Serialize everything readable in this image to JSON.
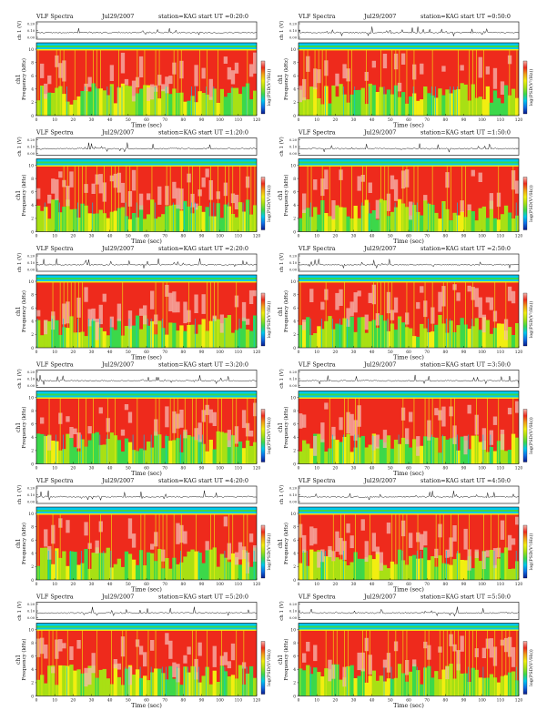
{
  "chart_data": [
    {
      "type": "heatmap",
      "header": "VLF Spectra",
      "date": "Jul29/2007",
      "station": "station=KAG",
      "start": "start UT =0:20:0",
      "xlabel": "Time (sec)",
      "ylabel": "Frequency (kHz)",
      "ylabel_top": "ch 1 (V)",
      "channel": "ch1",
      "cbar_label": "log(PSD(V²/Hz))",
      "xlim": [
        0,
        120
      ],
      "ylim": [
        0,
        10
      ],
      "ylim_top": [
        0.0,
        0.2
      ],
      "xticks": [
        0,
        10,
        20,
        30,
        40,
        50,
        60,
        70,
        80,
        90,
        100,
        110,
        120
      ],
      "yticks": [
        0,
        2,
        4,
        6,
        8,
        10
      ],
      "yticks_top": [
        "0.20",
        "0.10",
        "0.00"
      ]
    },
    {
      "type": "heatmap",
      "header": "VLF Spectra",
      "date": "Jul29/2007",
      "station": "station=KAG",
      "start": "start UT =0:50:0",
      "xlabel": "Time (sec)",
      "ylabel": "Frequency (kHz)",
      "ylabel_top": "ch 1 (V)",
      "channel": "ch1",
      "cbar_label": "log(PSD(V²/Hz))",
      "xlim": [
        0,
        120
      ],
      "ylim": [
        0,
        10
      ],
      "ylim_top": [
        0.0,
        0.2
      ],
      "xticks": [
        0,
        10,
        20,
        30,
        40,
        50,
        60,
        70,
        80,
        90,
        100,
        110,
        120
      ],
      "yticks": [
        0,
        2,
        4,
        6,
        8,
        10
      ],
      "yticks_top": [
        "0.20",
        "0.10",
        "0.00"
      ]
    },
    {
      "type": "heatmap",
      "header": "VLF Spectra",
      "date": "Jul29/2007",
      "station": "station=KAG",
      "start": "start UT =1:20:0",
      "xlabel": "Time (sec)",
      "ylabel": "Frequency (kHz)",
      "ylabel_top": "ch 1 (V)",
      "channel": "ch1",
      "cbar_label": "log(PSD(V²/Hz))",
      "xlim": [
        0,
        120
      ],
      "ylim": [
        0,
        10
      ],
      "ylim_top": [
        0.0,
        0.2
      ],
      "xticks": [
        0,
        10,
        20,
        30,
        40,
        50,
        60,
        70,
        80,
        90,
        100,
        110,
        120
      ],
      "yticks": [
        0,
        2,
        4,
        6,
        8,
        10
      ],
      "yticks_top": [
        "0.20",
        "0.10",
        "0.00"
      ]
    },
    {
      "type": "heatmap",
      "header": "VLF Spectra",
      "date": "Jul29/2007",
      "station": "station=KAG",
      "start": "start UT =1:50:0",
      "xlabel": "Time (sec)",
      "ylabel": "Frequency (kHz)",
      "ylabel_top": "ch 1 (V)",
      "channel": "ch1",
      "cbar_label": "log(PSD(V²/Hz))",
      "xlim": [
        0,
        120
      ],
      "ylim": [
        0,
        10
      ],
      "ylim_top": [
        0.0,
        0.2
      ],
      "xticks": [
        0,
        10,
        20,
        30,
        40,
        50,
        60,
        70,
        80,
        90,
        100,
        110,
        120
      ],
      "yticks": [
        0,
        2,
        4,
        6,
        8,
        10
      ],
      "yticks_top": [
        "0.20",
        "0.10",
        "0.00"
      ]
    },
    {
      "type": "heatmap",
      "header": "VLF Spectra",
      "date": "Jul29/2007",
      "station": "station=KAG",
      "start": "start UT =2:20:0",
      "xlabel": "Time (sec)",
      "ylabel": "Frequency (kHz)",
      "ylabel_top": "ch 1 (V)",
      "channel": "ch1",
      "cbar_label": "log(PSD(V²/Hz))",
      "xlim": [
        0,
        120
      ],
      "ylim": [
        0,
        10
      ],
      "ylim_top": [
        0.0,
        0.2
      ],
      "xticks": [
        0,
        10,
        20,
        30,
        40,
        50,
        60,
        70,
        80,
        90,
        100,
        110,
        120
      ],
      "yticks": [
        0,
        2,
        4,
        6,
        8,
        10
      ],
      "yticks_top": [
        "0.20",
        "0.10",
        "0.00"
      ]
    },
    {
      "type": "heatmap",
      "header": "VLF Spectra",
      "date": "Jul29/2007",
      "station": "station=KAG",
      "start": "start UT =2:50:0",
      "xlabel": "Time (sec)",
      "ylabel": "Frequency (kHz)",
      "ylabel_top": "ch 1 (V)",
      "channel": "ch1",
      "cbar_label": "log(PSD(V²/Hz))",
      "xlim": [
        0,
        120
      ],
      "ylim": [
        0,
        10
      ],
      "ylim_top": [
        0.0,
        0.2
      ],
      "xticks": [
        0,
        10,
        20,
        30,
        40,
        50,
        60,
        70,
        80,
        90,
        100,
        110,
        120
      ],
      "yticks": [
        0,
        2,
        4,
        6,
        8,
        10
      ],
      "yticks_top": [
        "0.20",
        "0.10",
        "0.00"
      ]
    },
    {
      "type": "heatmap",
      "header": "VLF Spectra",
      "date": "Jul29/2007",
      "station": "station=KAG",
      "start": "start UT =3:20:0",
      "xlabel": "Time (sec)",
      "ylabel": "Frequency (kHz)",
      "ylabel_top": "ch 1 (V)",
      "channel": "ch1",
      "cbar_label": "log(PSD(V²/Hz))",
      "xlim": [
        0,
        120
      ],
      "ylim": [
        0,
        10
      ],
      "ylim_top": [
        0.0,
        0.2
      ],
      "xticks": [
        0,
        10,
        20,
        30,
        40,
        50,
        60,
        70,
        80,
        90,
        100,
        110,
        120
      ],
      "yticks": [
        0,
        2,
        4,
        6,
        8,
        10
      ],
      "yticks_top": [
        "0.20",
        "0.10",
        "0.00"
      ]
    },
    {
      "type": "heatmap",
      "header": "VLF Spectra",
      "date": "Jul29/2007",
      "station": "station=KAG",
      "start": "start UT =3:50:0",
      "xlabel": "Time (sec)",
      "ylabel": "Frequency (kHz)",
      "ylabel_top": "ch 1 (V)",
      "channel": "ch1",
      "cbar_label": "log(PSD(V²/Hz))",
      "xlim": [
        0,
        120
      ],
      "ylim": [
        0,
        10
      ],
      "ylim_top": [
        0.0,
        0.2
      ],
      "xticks": [
        0,
        10,
        20,
        30,
        40,
        50,
        60,
        70,
        80,
        90,
        100,
        110,
        120
      ],
      "yticks": [
        0,
        2,
        4,
        6,
        8,
        10
      ],
      "yticks_top": [
        "0.20",
        "0.10",
        "0.00"
      ]
    },
    {
      "type": "heatmap",
      "header": "VLF Spectra",
      "date": "Jul29/2007",
      "station": "station=KAG",
      "start": "start UT =4:20:0",
      "xlabel": "Time (sec)",
      "ylabel": "Frequency (kHz)",
      "ylabel_top": "ch 1 (V)",
      "channel": "ch1",
      "cbar_label": "log(PSD(V²/Hz))",
      "xlim": [
        0,
        120
      ],
      "ylim": [
        0,
        10
      ],
      "ylim_top": [
        0.0,
        0.2
      ],
      "xticks": [
        0,
        10,
        20,
        30,
        40,
        50,
        60,
        70,
        80,
        90,
        100,
        110,
        120
      ],
      "yticks": [
        0,
        2,
        4,
        6,
        8,
        10
      ],
      "yticks_top": [
        "0.20",
        "0.10",
        "0.00"
      ]
    },
    {
      "type": "heatmap",
      "header": "VLF Spectra",
      "date": "Jul29/2007",
      "station": "station=KAG",
      "start": "start UT =4:50:0",
      "xlabel": "Time (sec)",
      "ylabel": "Frequency (kHz)",
      "ylabel_top": "ch 1 (V)",
      "channel": "ch1",
      "cbar_label": "log(PSD(V²/Hz))",
      "xlim": [
        0,
        120
      ],
      "ylim": [
        0,
        10
      ],
      "ylim_top": [
        0.0,
        0.2
      ],
      "xticks": [
        0,
        10,
        20,
        30,
        40,
        50,
        60,
        70,
        80,
        90,
        100,
        110,
        120
      ],
      "yticks": [
        0,
        2,
        4,
        6,
        8,
        10
      ],
      "yticks_top": [
        "0.20",
        "0.10",
        "0.00"
      ]
    },
    {
      "type": "heatmap",
      "header": "VLF Spectra",
      "date": "Jul29/2007",
      "station": "station=KAG",
      "start": "start UT =5:20:0",
      "xlabel": "Time (sec)",
      "ylabel": "Frequency (kHz)",
      "ylabel_top": "ch 1 (V)",
      "channel": "ch1",
      "cbar_label": "log(PSD(V²/Hz))",
      "xlim": [
        0,
        120
      ],
      "ylim": [
        0,
        10
      ],
      "ylim_top": [
        0.0,
        0.2
      ],
      "xticks": [
        0,
        10,
        20,
        30,
        40,
        50,
        60,
        70,
        80,
        90,
        100,
        110,
        120
      ],
      "yticks": [
        0,
        2,
        4,
        6,
        8,
        10
      ],
      "yticks_top": [
        "0.20",
        "0.10",
        "0.00"
      ]
    },
    {
      "type": "heatmap",
      "header": "VLF Spectra",
      "date": "Jul29/2007",
      "station": "station=KAG",
      "start": "start UT =5:50:0",
      "xlabel": "Time (sec)",
      "ylabel": "Frequency (kHz)",
      "ylabel_top": "ch 1 (V)",
      "channel": "ch1",
      "cbar_label": "log(PSD(V²/Hz))",
      "xlim": [
        0,
        120
      ],
      "ylim": [
        0,
        10
      ],
      "ylim_top": [
        0.0,
        0.2
      ],
      "xticks": [
        0,
        10,
        20,
        30,
        40,
        50,
        60,
        70,
        80,
        90,
        100,
        110,
        120
      ],
      "yticks": [
        0,
        2,
        4,
        6,
        8,
        10
      ],
      "yticks_top": [
        "0.20",
        "0.10",
        "0.00"
      ]
    }
  ],
  "colors": {
    "spectrogram_scale": [
      "#0a1a8c",
      "#0e6ee6",
      "#00c8ee",
      "#3cd84a",
      "#a8e014",
      "#f2ee10",
      "#f2a018",
      "#ee2a1c",
      "#f6b8b0"
    ],
    "line": "#111111"
  }
}
